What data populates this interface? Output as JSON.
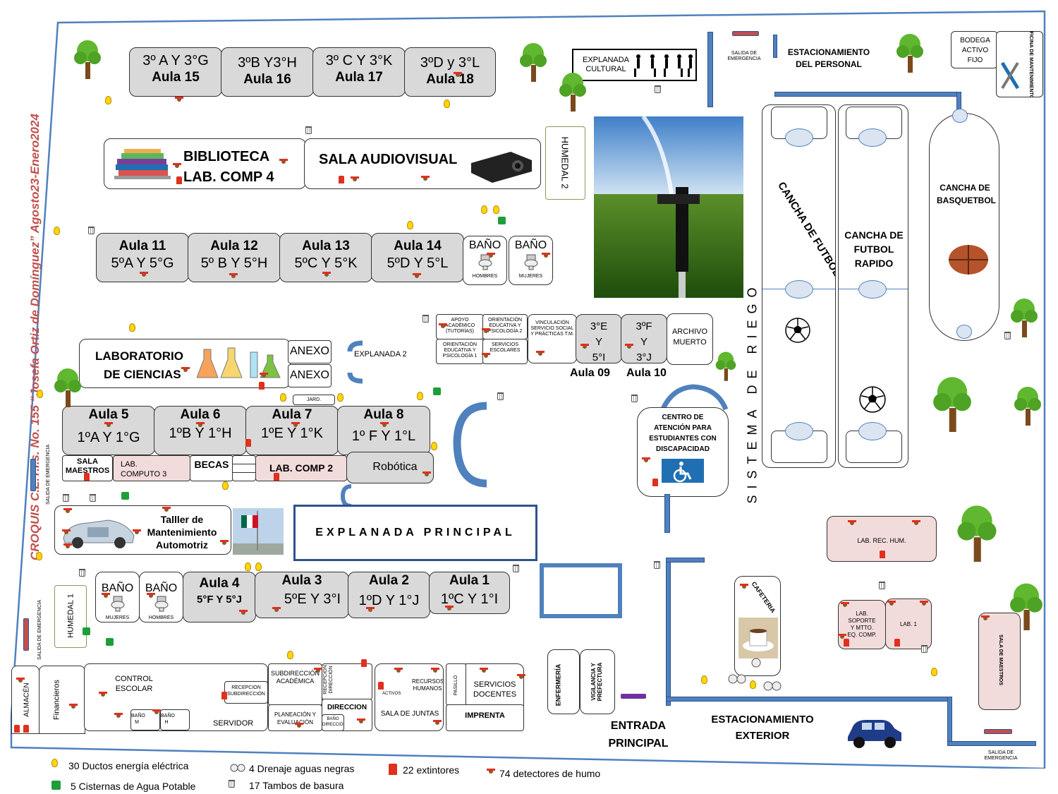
{
  "title": "CROQUIS C.E.T.i.s. No. 155 “Josefa Ortiz de Domínguez” Agosto23-Enero2024",
  "colors": {
    "road": "#4f81bd",
    "room": "#d9d9d9",
    "pink": "#f2dcdb",
    "title": "#c0504d",
    "tree": "#4caf2a"
  },
  "top_row": [
    {
      "line1": "3º A Y 3°G",
      "line2": "Aula 15"
    },
    {
      "line1": "3ºB Y3°H",
      "line2": "Aula 16"
    },
    {
      "line1": "3º C Y 3°K",
      "line2": "Aula 17"
    },
    {
      "line1": "3ºD y 3°L",
      "line2": "Aula 18"
    }
  ],
  "biblioteca": {
    "line1": "BIBLIOTECA",
    "line2": "LAB. COMP 4"
  },
  "audiovisual": "SALA AUDIOVISUAL",
  "humedal2": "HUMEDAL 2",
  "explanada_cultural": "EXPLANADA CULTURAL",
  "salida_emergencia": "SALIDA DE EMERGENCIA",
  "estacionamiento_personal": "ESTACIONAMIENTO DEL PERSONAL",
  "bodega": "BODEGA ACTIVO FIJO",
  "oficina_mant": "OFICINA DE MANTENIMIENTO",
  "row2": [
    {
      "line1": "Aula 11",
      "line2": "5ºA Y 5°G"
    },
    {
      "line1": "Aula 12",
      "line2": "5º B Y 5°H"
    },
    {
      "line1": "Aula 13",
      "line2": "5ºC Y 5°K"
    },
    {
      "line1": "Aula 14",
      "line2": "5ºD Y 5°L"
    }
  ],
  "bano": "BAÑO",
  "hombres": "HOMBRES",
  "mujeres": "MUJERES",
  "lab_ciencias": {
    "line1": "LABORATORIO",
    "line2": "DE CIENCIAS"
  },
  "anexo": "ANEXO",
  "explanada2": "EXPLANADA 2",
  "offices": {
    "apoyo": "APOYO ACADÉMICO (TUTORÍAS)",
    "orient2": "ORIENTACIÓN EDUCATIVA Y PSICOLOGÍA 2",
    "orient1": "ORIENTACIÓN EDUCATIVA Y PSICOLOGÍA 1",
    "servicios": "SERVICIOS ESCOLARES",
    "vinculacion": "VINCULACIÓN SERVICIO SOCIAL Y PRÁCTICAS T.M."
  },
  "aula09": {
    "inner": "3°E Y 5°I",
    "label": "Aula 09"
  },
  "aula10": {
    "inner": "3ºF Y 3°J",
    "label": "Aula 10"
  },
  "archivo": "ARCHIVO MUERTO",
  "jard": "JARD.",
  "row3": [
    {
      "line1": "Aula 5",
      "line2": "1ºA Y 1°G"
    },
    {
      "line1": "Aula 6",
      "line2": "1ºB Y 1°H"
    },
    {
      "line1": "Aula 7",
      "line2": "1ºE Y 1°K"
    },
    {
      "line1": "Aula 8",
      "line2": "1º F Y 1°L"
    }
  ],
  "sala_maestros": "SALA MAESTROS",
  "lab_comp3": "LAB. COMPUTO 3",
  "becas": "BECAS",
  "lab_comp2": "LAB. COMP 2",
  "robotica": "Robótica",
  "centro": "CENTRO DE ATENCIÓN PARA ESTUDIANTES CON DISCAPACIDAD",
  "sistema_riego": "SISTEMA DE RIEGO",
  "cancha7": "CANCHA DE FUTBOL 7",
  "cancha_rapido": "CANCHA DE FUTBOL RAPIDO",
  "cancha_basquet": "CANCHA DE BASQUETBOL",
  "taller": "Talller de Mantenimiento Automotriz",
  "explanada_principal": "EXPLANADA PRINCIPAL",
  "lab_rec_hum": "LAB. REC. HUM.",
  "row4": [
    {
      "line1": "Aula 4",
      "line2": "5°F Y 5°J"
    },
    {
      "line1": "Aula 3",
      "line2": "5ºE Y 3°I"
    },
    {
      "line1": "Aula 2",
      "line2": "1ºD Y 1°J"
    },
    {
      "line1": "Aula 1",
      "line2": "1ºC Y 1°I"
    }
  ],
  "humedal1": "HUMEDAL 1",
  "cafeteria": "CAFETERIA",
  "lab_soporte": "LAB. SOPORTE Y MTTO. EQ. COMP.",
  "lab1": "LAB. 1",
  "sala_maestros_right": "SALA DE MAESTROS",
  "admin": {
    "almacen": "ALMACÉN",
    "financieros": "Financieros",
    "control": "CONTROL ESCOLAR",
    "recepcion_sub": "RECEPCION SUBDIRECCIÓN",
    "subdireccion": "SUBDIRECCIÓN ACADÉMICA",
    "recepcion_dir": "RECEPCIÓN DIRECCIÓN",
    "activos": "ACTIVOS",
    "recursos": "RECURSOS HUMANOS",
    "pasillo": "PASILLO",
    "servicios_docentes": "SERVICIOS DOCENTES",
    "bano_m": "BAÑO M",
    "bano_h": "BAÑO H",
    "servidor": "SERVIDOR",
    "planeacion": "PLANEACIÓN Y EVALUACIÓN",
    "direccion": "DIRECCION",
    "bano_dir": "BAÑO DIRECCIÓN",
    "sala_juntas": "SALA DE JUNTAS",
    "imprenta": "IMPRENTA"
  },
  "enfermeria": "ENFERMERÍA",
  "vigilancia": "VIGILANCIA Y PREFECTURA",
  "entrada": "ENTRADA PRINCIPAL",
  "estacionamiento_ext": "ESTACIONAMIENTO EXTERIOR",
  "legend": [
    {
      "icon": "bulb-icon",
      "text": "30 Ductos energía eléctrica"
    },
    {
      "icon": "drain-icon",
      "text": "4 Drenaje aguas negras"
    },
    {
      "icon": "extinguisher-icon",
      "text": "22 extintores"
    },
    {
      "icon": "smoke-detector-icon",
      "text": "74 detectores de humo"
    },
    {
      "icon": "cistern-icon",
      "text": "5 Cisternas de  Agua Potable"
    },
    {
      "icon": "trash-icon",
      "text": "17 Tambos de basura"
    }
  ]
}
